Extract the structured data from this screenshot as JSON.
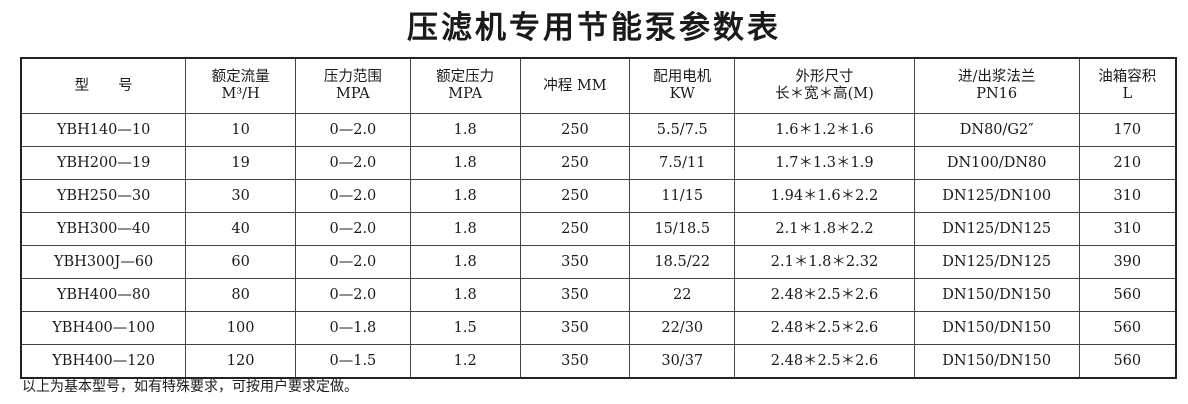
{
  "title": "压滤机专用节能泵参数表",
  "headers": [
    [
      "型　　号",
      ""
    ],
    [
      "额定流量",
      "M³/H"
    ],
    [
      "压力范围",
      "MPA"
    ],
    [
      "额定压力",
      "MPA"
    ],
    [
      "冲程 MM",
      ""
    ],
    [
      "配用电机",
      "KW"
    ],
    [
      "外形尺寸",
      "长＊宽＊高(M)"
    ],
    [
      "进/出浆法兰",
      "PN16"
    ],
    [
      "油箱容积",
      "L"
    ]
  ],
  "rows": [
    [
      "YBH140—10",
      "10",
      "0—2.0",
      "1.8",
      "250",
      "5.5/7.5",
      "1.6＊1.2＊1.6",
      "DN80/G2″",
      "170"
    ],
    [
      "YBH200—19",
      "19",
      "0—2.0",
      "1.8",
      "250",
      "7.5/11",
      "1.7＊1.3＊1.9",
      "DN100/DN80",
      "210"
    ],
    [
      "YBH250—30",
      "30",
      "0—2.0",
      "1.8",
      "250",
      "11/15",
      "1.94＊1.6＊2.2",
      "DN125/DN100",
      "310"
    ],
    [
      "YBH300—40",
      "40",
      "0—2.0",
      "1.8",
      "250",
      "15/18.5",
      "2.1＊1.8＊2.2",
      "DN125/DN125",
      "310"
    ],
    [
      "YBH300J—60",
      "60",
      "0—2.0",
      "1.8",
      "350",
      "18.5/22",
      "2.1＊1.8＊2.32",
      "DN125/DN125",
      "390"
    ],
    [
      "YBH400—80",
      "80",
      "0—2.0",
      "1.8",
      "350",
      "22",
      "2.48＊2.5＊2.6",
      "DN150/DN150",
      "560"
    ],
    [
      "YBH400—100",
      "100",
      "0—1.8",
      "1.5",
      "350",
      "22/30",
      "2.48＊2.5＊2.6",
      "DN150/DN150",
      "560"
    ],
    [
      "YBH400—120",
      "120",
      "0—1.5",
      "1.2",
      "350",
      "30/37",
      "2.48＊2.5＊2.6",
      "DN150/DN150",
      "560"
    ]
  ],
  "footnote": "以上为基本型号，如有特殊要求，可按用户要求定做。"
}
